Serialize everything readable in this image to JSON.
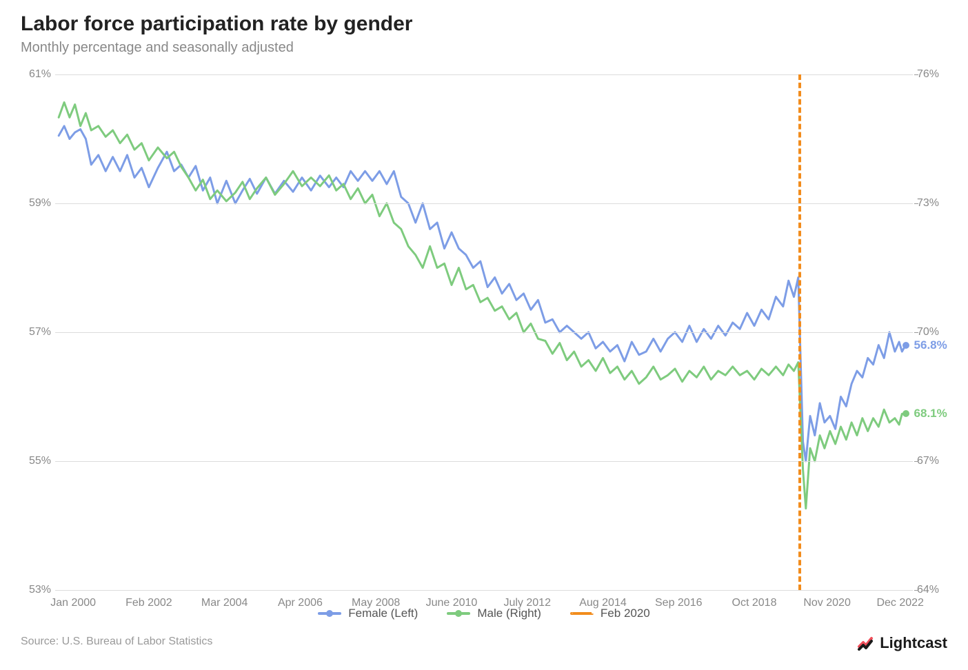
{
  "title": "Labor force participation rate by gender",
  "subtitle": "Monthly percentage and seasonally adjusted",
  "source": "Source:  U.S. Bureau of Labor Statistics",
  "logo_text": "Lightcast",
  "chart": {
    "type": "line",
    "background_color": "#ffffff",
    "grid_color": "#dcdcdc",
    "x_start_year": 1999.5,
    "x_end_year": 2023.3,
    "x_ticks": [
      {
        "pos": 2000.0,
        "label": "Jan 2000"
      },
      {
        "pos": 2002.1,
        "label": "Feb 2002"
      },
      {
        "pos": 2004.2,
        "label": "Mar 2004"
      },
      {
        "pos": 2006.3,
        "label": "Apr 2006"
      },
      {
        "pos": 2008.4,
        "label": "May 2008"
      },
      {
        "pos": 2010.5,
        "label": "June 2010"
      },
      {
        "pos": 2012.6,
        "label": "July 2012"
      },
      {
        "pos": 2014.7,
        "label": "Aug 2014"
      },
      {
        "pos": 2016.8,
        "label": "Sep 2016"
      },
      {
        "pos": 2018.9,
        "label": "Oct 2018"
      },
      {
        "pos": 2020.92,
        "label": "Nov 2020"
      },
      {
        "pos": 2022.95,
        "label": "Dec 2022"
      }
    ],
    "left_axis": {
      "min": 53,
      "max": 61,
      "ticks": [
        53,
        55,
        57,
        59,
        61
      ],
      "suffix": "%"
    },
    "right_axis": {
      "min": 64,
      "max": 76,
      "ticks": [
        64,
        67,
        70,
        73,
        76
      ],
      "suffix": "%"
    },
    "vline": {
      "x": 2020.12,
      "color": "#f28c1c",
      "label": "Feb 2020"
    },
    "series": [
      {
        "name": "Female (Left)",
        "axis": "left",
        "color": "#7d9de6",
        "line_width": 3,
        "end_value": 56.8,
        "end_label": "56.8%",
        "data": [
          [
            1999.6,
            60.05
          ],
          [
            1999.75,
            60.2
          ],
          [
            1999.9,
            60.0
          ],
          [
            2000.05,
            60.1
          ],
          [
            2000.2,
            60.15
          ],
          [
            2000.35,
            60.0
          ],
          [
            2000.5,
            59.6
          ],
          [
            2000.7,
            59.75
          ],
          [
            2000.9,
            59.5
          ],
          [
            2001.1,
            59.72
          ],
          [
            2001.3,
            59.5
          ],
          [
            2001.5,
            59.75
          ],
          [
            2001.7,
            59.4
          ],
          [
            2001.9,
            59.55
          ],
          [
            2002.1,
            59.25
          ],
          [
            2002.35,
            59.55
          ],
          [
            2002.6,
            59.8
          ],
          [
            2002.8,
            59.5
          ],
          [
            2003.0,
            59.6
          ],
          [
            2003.2,
            59.4
          ],
          [
            2003.4,
            59.58
          ],
          [
            2003.6,
            59.2
          ],
          [
            2003.8,
            59.4
          ],
          [
            2004.0,
            59.0
          ],
          [
            2004.25,
            59.35
          ],
          [
            2004.5,
            59.0
          ],
          [
            2004.7,
            59.2
          ],
          [
            2004.9,
            59.38
          ],
          [
            2005.1,
            59.15
          ],
          [
            2005.35,
            59.4
          ],
          [
            2005.6,
            59.15
          ],
          [
            2005.85,
            59.35
          ],
          [
            2006.1,
            59.18
          ],
          [
            2006.35,
            59.4
          ],
          [
            2006.6,
            59.2
          ],
          [
            2006.85,
            59.43
          ],
          [
            2007.1,
            59.25
          ],
          [
            2007.3,
            59.4
          ],
          [
            2007.5,
            59.25
          ],
          [
            2007.7,
            59.5
          ],
          [
            2007.9,
            59.35
          ],
          [
            2008.1,
            59.5
          ],
          [
            2008.3,
            59.35
          ],
          [
            2008.5,
            59.5
          ],
          [
            2008.7,
            59.3
          ],
          [
            2008.9,
            59.5
          ],
          [
            2009.1,
            59.1
          ],
          [
            2009.3,
            59.0
          ],
          [
            2009.5,
            58.7
          ],
          [
            2009.7,
            59.0
          ],
          [
            2009.9,
            58.6
          ],
          [
            2010.1,
            58.7
          ],
          [
            2010.3,
            58.3
          ],
          [
            2010.5,
            58.55
          ],
          [
            2010.7,
            58.3
          ],
          [
            2010.9,
            58.2
          ],
          [
            2011.1,
            58.0
          ],
          [
            2011.3,
            58.1
          ],
          [
            2011.5,
            57.7
          ],
          [
            2011.7,
            57.85
          ],
          [
            2011.9,
            57.6
          ],
          [
            2012.1,
            57.75
          ],
          [
            2012.3,
            57.5
          ],
          [
            2012.5,
            57.6
          ],
          [
            2012.7,
            57.35
          ],
          [
            2012.9,
            57.5
          ],
          [
            2013.1,
            57.15
          ],
          [
            2013.3,
            57.2
          ],
          [
            2013.5,
            57.0
          ],
          [
            2013.7,
            57.1
          ],
          [
            2013.9,
            57.0
          ],
          [
            2014.1,
            56.9
          ],
          [
            2014.3,
            57.0
          ],
          [
            2014.5,
            56.75
          ],
          [
            2014.7,
            56.85
          ],
          [
            2014.9,
            56.7
          ],
          [
            2015.1,
            56.8
          ],
          [
            2015.3,
            56.55
          ],
          [
            2015.5,
            56.85
          ],
          [
            2015.7,
            56.65
          ],
          [
            2015.9,
            56.7
          ],
          [
            2016.1,
            56.9
          ],
          [
            2016.3,
            56.7
          ],
          [
            2016.5,
            56.9
          ],
          [
            2016.7,
            57.0
          ],
          [
            2016.9,
            56.85
          ],
          [
            2017.1,
            57.1
          ],
          [
            2017.3,
            56.85
          ],
          [
            2017.5,
            57.05
          ],
          [
            2017.7,
            56.9
          ],
          [
            2017.9,
            57.1
          ],
          [
            2018.1,
            56.95
          ],
          [
            2018.3,
            57.15
          ],
          [
            2018.5,
            57.05
          ],
          [
            2018.7,
            57.3
          ],
          [
            2018.9,
            57.1
          ],
          [
            2019.1,
            57.35
          ],
          [
            2019.3,
            57.2
          ],
          [
            2019.5,
            57.55
          ],
          [
            2019.7,
            57.4
          ],
          [
            2019.85,
            57.8
          ],
          [
            2020.0,
            57.55
          ],
          [
            2020.12,
            57.85
          ],
          [
            2020.25,
            55.3
          ],
          [
            2020.33,
            55.0
          ],
          [
            2020.45,
            55.7
          ],
          [
            2020.58,
            55.4
          ],
          [
            2020.72,
            55.9
          ],
          [
            2020.85,
            55.6
          ],
          [
            2021.0,
            55.7
          ],
          [
            2021.15,
            55.5
          ],
          [
            2021.3,
            56.0
          ],
          [
            2021.45,
            55.85
          ],
          [
            2021.6,
            56.2
          ],
          [
            2021.75,
            56.4
          ],
          [
            2021.9,
            56.3
          ],
          [
            2022.05,
            56.6
          ],
          [
            2022.2,
            56.5
          ],
          [
            2022.35,
            56.8
          ],
          [
            2022.5,
            56.6
          ],
          [
            2022.65,
            57.0
          ],
          [
            2022.8,
            56.7
          ],
          [
            2022.92,
            56.85
          ],
          [
            2023.0,
            56.7
          ],
          [
            2023.1,
            56.8
          ]
        ]
      },
      {
        "name": "Male (Right)",
        "axis": "right",
        "color": "#7ecb7e",
        "line_width": 3,
        "end_value": 68.1,
        "end_label": "68.1%",
        "data": [
          [
            1999.6,
            75.0
          ],
          [
            1999.75,
            75.35
          ],
          [
            1999.9,
            75.0
          ],
          [
            2000.05,
            75.3
          ],
          [
            2000.2,
            74.8
          ],
          [
            2000.35,
            75.1
          ],
          [
            2000.5,
            74.7
          ],
          [
            2000.7,
            74.8
          ],
          [
            2000.9,
            74.55
          ],
          [
            2001.1,
            74.7
          ],
          [
            2001.3,
            74.4
          ],
          [
            2001.5,
            74.6
          ],
          [
            2001.7,
            74.25
          ],
          [
            2001.9,
            74.4
          ],
          [
            2002.1,
            74.0
          ],
          [
            2002.35,
            74.3
          ],
          [
            2002.6,
            74.05
          ],
          [
            2002.8,
            74.2
          ],
          [
            2003.0,
            73.85
          ],
          [
            2003.2,
            73.6
          ],
          [
            2003.4,
            73.3
          ],
          [
            2003.6,
            73.55
          ],
          [
            2003.8,
            73.1
          ],
          [
            2004.0,
            73.3
          ],
          [
            2004.25,
            73.05
          ],
          [
            2004.5,
            73.25
          ],
          [
            2004.7,
            73.5
          ],
          [
            2004.9,
            73.1
          ],
          [
            2005.1,
            73.35
          ],
          [
            2005.35,
            73.6
          ],
          [
            2005.6,
            73.2
          ],
          [
            2005.85,
            73.45
          ],
          [
            2006.1,
            73.75
          ],
          [
            2006.35,
            73.4
          ],
          [
            2006.6,
            73.6
          ],
          [
            2006.85,
            73.4
          ],
          [
            2007.1,
            73.65
          ],
          [
            2007.3,
            73.3
          ],
          [
            2007.5,
            73.45
          ],
          [
            2007.7,
            73.1
          ],
          [
            2007.9,
            73.35
          ],
          [
            2008.1,
            73.0
          ],
          [
            2008.3,
            73.2
          ],
          [
            2008.5,
            72.7
          ],
          [
            2008.7,
            73.0
          ],
          [
            2008.9,
            72.55
          ],
          [
            2009.1,
            72.4
          ],
          [
            2009.3,
            72.0
          ],
          [
            2009.5,
            71.8
          ],
          [
            2009.7,
            71.5
          ],
          [
            2009.9,
            72.0
          ],
          [
            2010.1,
            71.5
          ],
          [
            2010.3,
            71.6
          ],
          [
            2010.5,
            71.1
          ],
          [
            2010.7,
            71.5
          ],
          [
            2010.9,
            71.0
          ],
          [
            2011.1,
            71.1
          ],
          [
            2011.3,
            70.7
          ],
          [
            2011.5,
            70.8
          ],
          [
            2011.7,
            70.5
          ],
          [
            2011.9,
            70.6
          ],
          [
            2012.1,
            70.3
          ],
          [
            2012.3,
            70.45
          ],
          [
            2012.5,
            70.0
          ],
          [
            2012.7,
            70.2
          ],
          [
            2012.9,
            69.85
          ],
          [
            2013.1,
            69.8
          ],
          [
            2013.3,
            69.5
          ],
          [
            2013.5,
            69.75
          ],
          [
            2013.7,
            69.35
          ],
          [
            2013.9,
            69.55
          ],
          [
            2014.1,
            69.2
          ],
          [
            2014.3,
            69.35
          ],
          [
            2014.5,
            69.1
          ],
          [
            2014.7,
            69.4
          ],
          [
            2014.9,
            69.05
          ],
          [
            2015.1,
            69.2
          ],
          [
            2015.3,
            68.9
          ],
          [
            2015.5,
            69.1
          ],
          [
            2015.7,
            68.8
          ],
          [
            2015.9,
            68.95
          ],
          [
            2016.1,
            69.2
          ],
          [
            2016.3,
            68.9
          ],
          [
            2016.5,
            69.0
          ],
          [
            2016.7,
            69.15
          ],
          [
            2016.9,
            68.85
          ],
          [
            2017.1,
            69.1
          ],
          [
            2017.3,
            68.95
          ],
          [
            2017.5,
            69.2
          ],
          [
            2017.7,
            68.9
          ],
          [
            2017.9,
            69.1
          ],
          [
            2018.1,
            69.0
          ],
          [
            2018.3,
            69.2
          ],
          [
            2018.5,
            69.0
          ],
          [
            2018.7,
            69.1
          ],
          [
            2018.9,
            68.9
          ],
          [
            2019.1,
            69.15
          ],
          [
            2019.3,
            69.0
          ],
          [
            2019.5,
            69.2
          ],
          [
            2019.7,
            69.0
          ],
          [
            2019.85,
            69.25
          ],
          [
            2020.0,
            69.1
          ],
          [
            2020.12,
            69.3
          ],
          [
            2020.25,
            66.8
          ],
          [
            2020.33,
            65.9
          ],
          [
            2020.45,
            67.3
          ],
          [
            2020.58,
            67.0
          ],
          [
            2020.72,
            67.6
          ],
          [
            2020.85,
            67.3
          ],
          [
            2021.0,
            67.7
          ],
          [
            2021.15,
            67.4
          ],
          [
            2021.3,
            67.8
          ],
          [
            2021.45,
            67.5
          ],
          [
            2021.6,
            67.9
          ],
          [
            2021.75,
            67.6
          ],
          [
            2021.9,
            68.0
          ],
          [
            2022.05,
            67.7
          ],
          [
            2022.2,
            68.0
          ],
          [
            2022.35,
            67.8
          ],
          [
            2022.5,
            68.2
          ],
          [
            2022.65,
            67.9
          ],
          [
            2022.8,
            68.0
          ],
          [
            2022.92,
            67.85
          ],
          [
            2023.0,
            68.1
          ],
          [
            2023.1,
            68.1
          ]
        ]
      }
    ],
    "legend": [
      {
        "label": "Female (Left)",
        "color": "#7d9de6",
        "type": "solid-dot"
      },
      {
        "label": "Male (Right)",
        "color": "#7ecb7e",
        "type": "solid-dot"
      },
      {
        "label": "Feb 2020",
        "color": "#f28c1c",
        "type": "dash"
      }
    ]
  },
  "logo_colors": {
    "accent1": "#f04e5a",
    "accent2": "#1a1a1a"
  }
}
